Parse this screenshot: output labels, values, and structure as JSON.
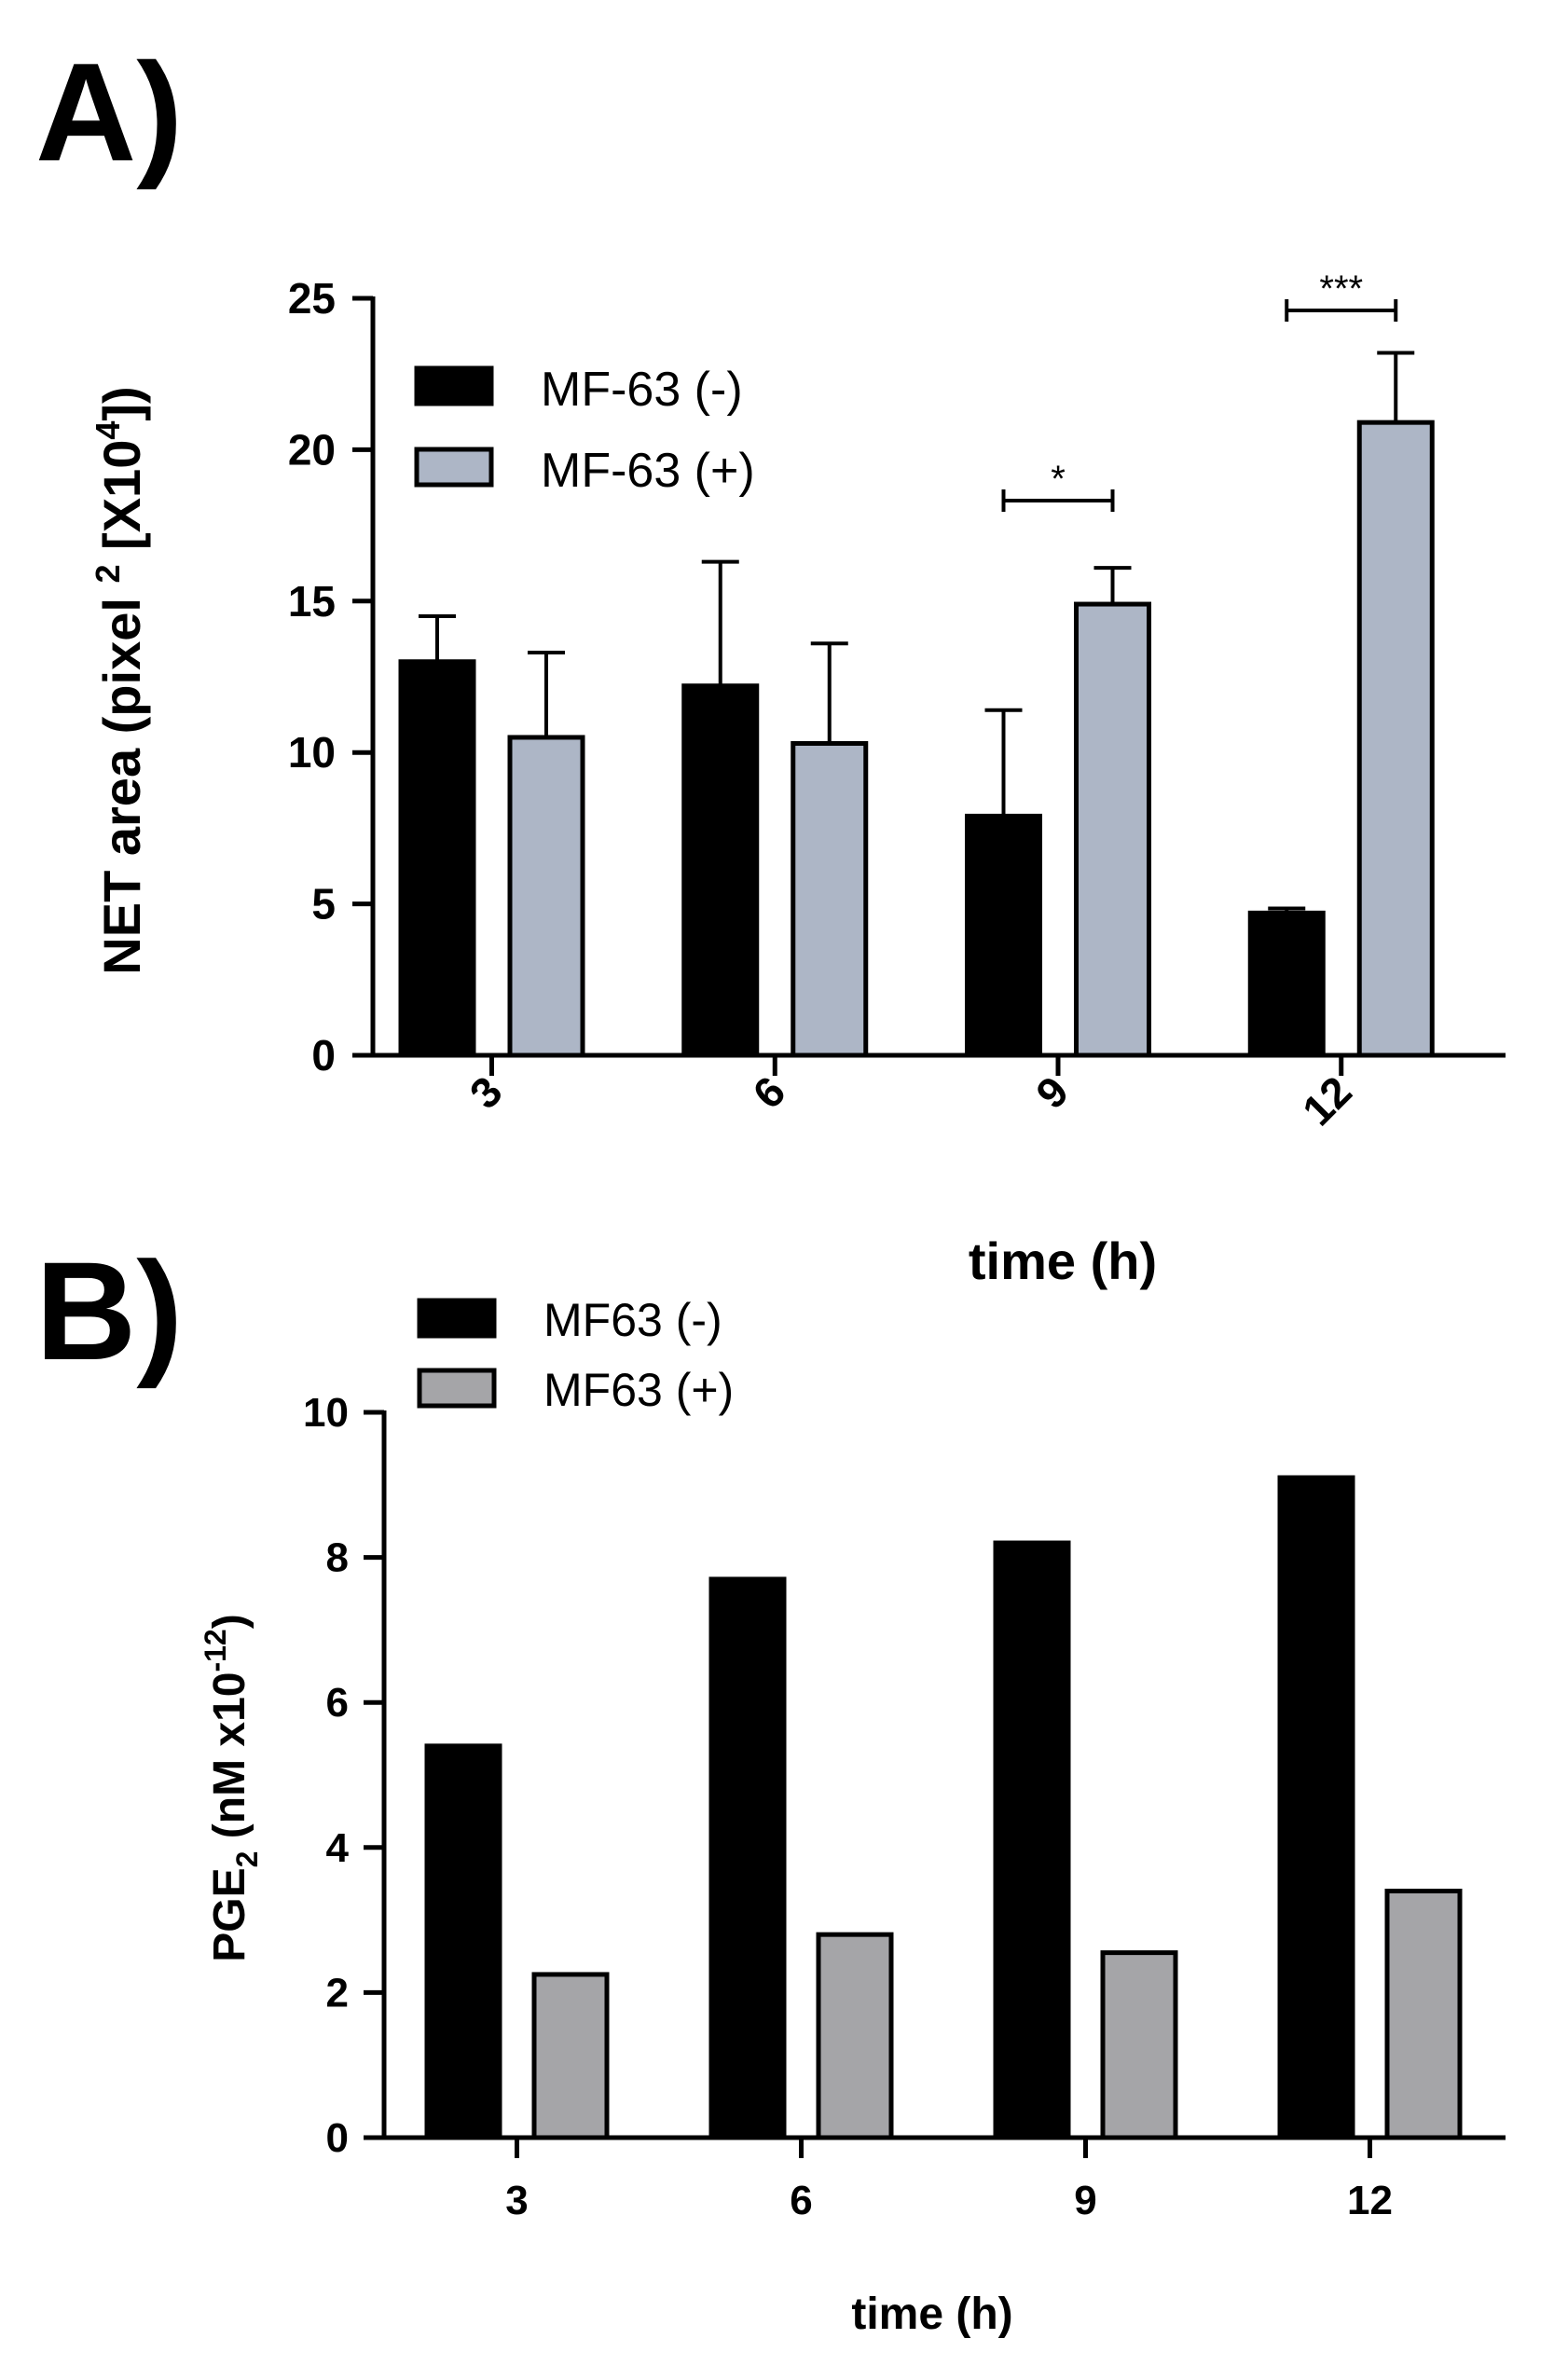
{
  "colors": {
    "series_minus": "#000000",
    "series_plus_a": "#adb6c6",
    "series_plus_b": "#a5a5a8",
    "axis": "#000000"
  },
  "chart_data": [
    {
      "panel": "A)",
      "type": "bar",
      "categories": [
        "3",
        "6",
        "9",
        "12"
      ],
      "series": [
        {
          "name": "MF-63 (-)",
          "values": [
            13.0,
            12.2,
            7.9,
            4.7
          ],
          "error": [
            1.5,
            4.1,
            3.5,
            0.15
          ]
        },
        {
          "name": "MF-63 (+)",
          "values": [
            10.5,
            10.3,
            14.9,
            20.9
          ],
          "error": [
            2.8,
            3.3,
            1.2,
            2.3
          ]
        }
      ],
      "xlabel": "time (h)",
      "ylabel": "NET area (pixel 2 [X10 4 ])",
      "ylabel_parts": {
        "main": "NET area (pixel ",
        "sup1": "2",
        "mid": " [X10",
        "sup2": "4",
        "end": "])"
      },
      "yticks": [
        "0",
        "5",
        "10",
        "15",
        "20",
        "25"
      ],
      "ylim": [
        0,
        25
      ],
      "legend_position": "top-left",
      "xtick_rotation": "rotated",
      "significance": [
        {
          "category": "9",
          "label": "*"
        },
        {
          "category": "12",
          "label": "***"
        }
      ],
      "grid": false
    },
    {
      "panel": "B)",
      "type": "bar",
      "categories": [
        "3",
        "6",
        "9",
        "12"
      ],
      "series": [
        {
          "name": "MF63 (-)",
          "values": [
            5.4,
            7.7,
            8.2,
            9.1
          ]
        },
        {
          "name": "MF63 (+)",
          "values": [
            2.25,
            2.8,
            2.55,
            3.4
          ]
        }
      ],
      "xlabel": "time (h)",
      "ylabel": "PGE2 (nM x10-12)",
      "ylabel_parts": {
        "main": "PGE",
        "sub": "2",
        "mid": " (nM x10",
        "sup": "-12",
        "end": ")"
      },
      "yticks": [
        "0",
        "2",
        "4",
        "6",
        "8",
        "10"
      ],
      "ylim": [
        0,
        10
      ],
      "legend_position": "top-left",
      "grid": false
    }
  ]
}
